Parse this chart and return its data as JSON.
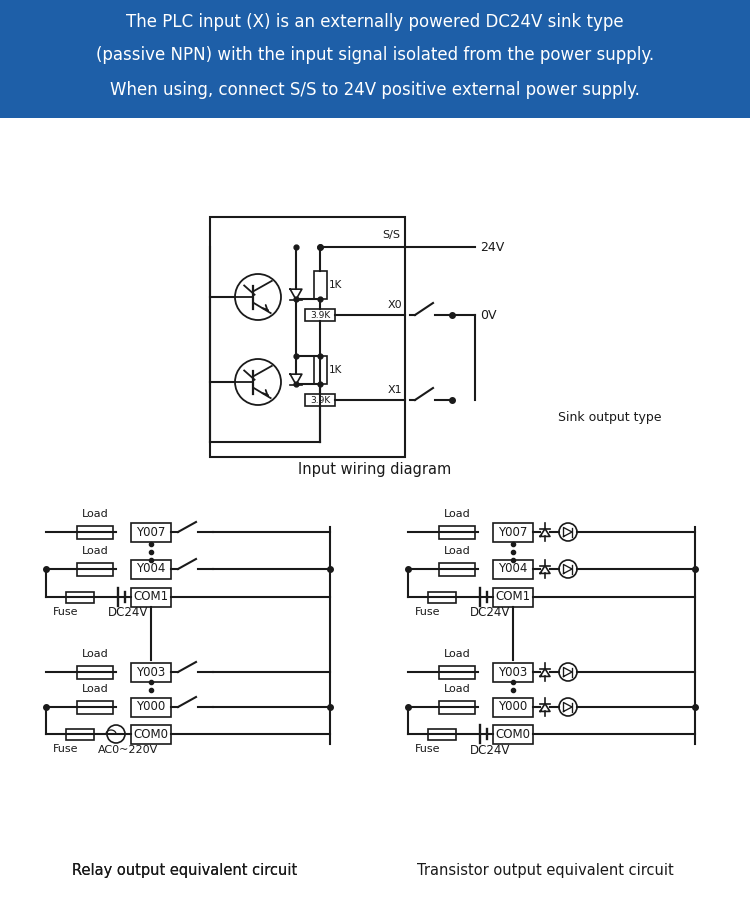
{
  "bg_header_color": "#1e5fa8",
  "bg_body_color": "#ffffff",
  "header_text_line1": "The PLC input (X) is an externally powered DC24V sink type",
  "header_text_line2": "(passive NPN) with the input signal isolated from the power supply.",
  "header_text_line3": "When using, connect S/S to 24V positive external power supply.",
  "header_text_color": "#ffffff",
  "diagram_line_color": "#1a1a1a",
  "label_input_wiring": "Input wiring diagram",
  "label_relay": "Relay output equivalent circuit",
  "label_transistor": "Transistor output equivalent circuit",
  "label_sink_output": "Sink output type"
}
